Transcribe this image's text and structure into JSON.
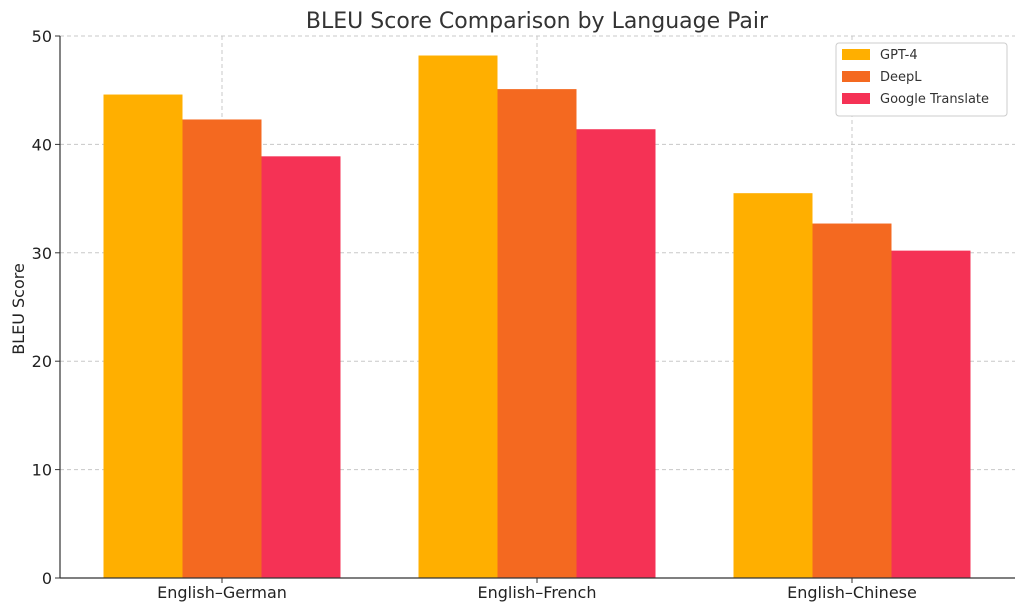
{
  "chart_data": {
    "type": "bar",
    "title": "BLEU Score Comparison by Language Pair",
    "xlabel": "",
    "ylabel": "BLEU Score",
    "categories": [
      "English–German",
      "English–French",
      "English–Chinese"
    ],
    "series": [
      {
        "name": "GPT-4",
        "values": [
          44.6,
          48.2,
          35.5
        ],
        "color": "#FFAF00"
      },
      {
        "name": "DeepL",
        "values": [
          42.3,
          45.1,
          32.7
        ],
        "color": "#F46920"
      },
      {
        "name": "Google Translate",
        "values": [
          38.9,
          41.4,
          30.2
        ],
        "color": "#F53255"
      }
    ],
    "ylim": [
      0,
      50
    ],
    "yticks": [
      0,
      10,
      20,
      30,
      40,
      50
    ],
    "grid": true,
    "legend_position": "top-right"
  }
}
